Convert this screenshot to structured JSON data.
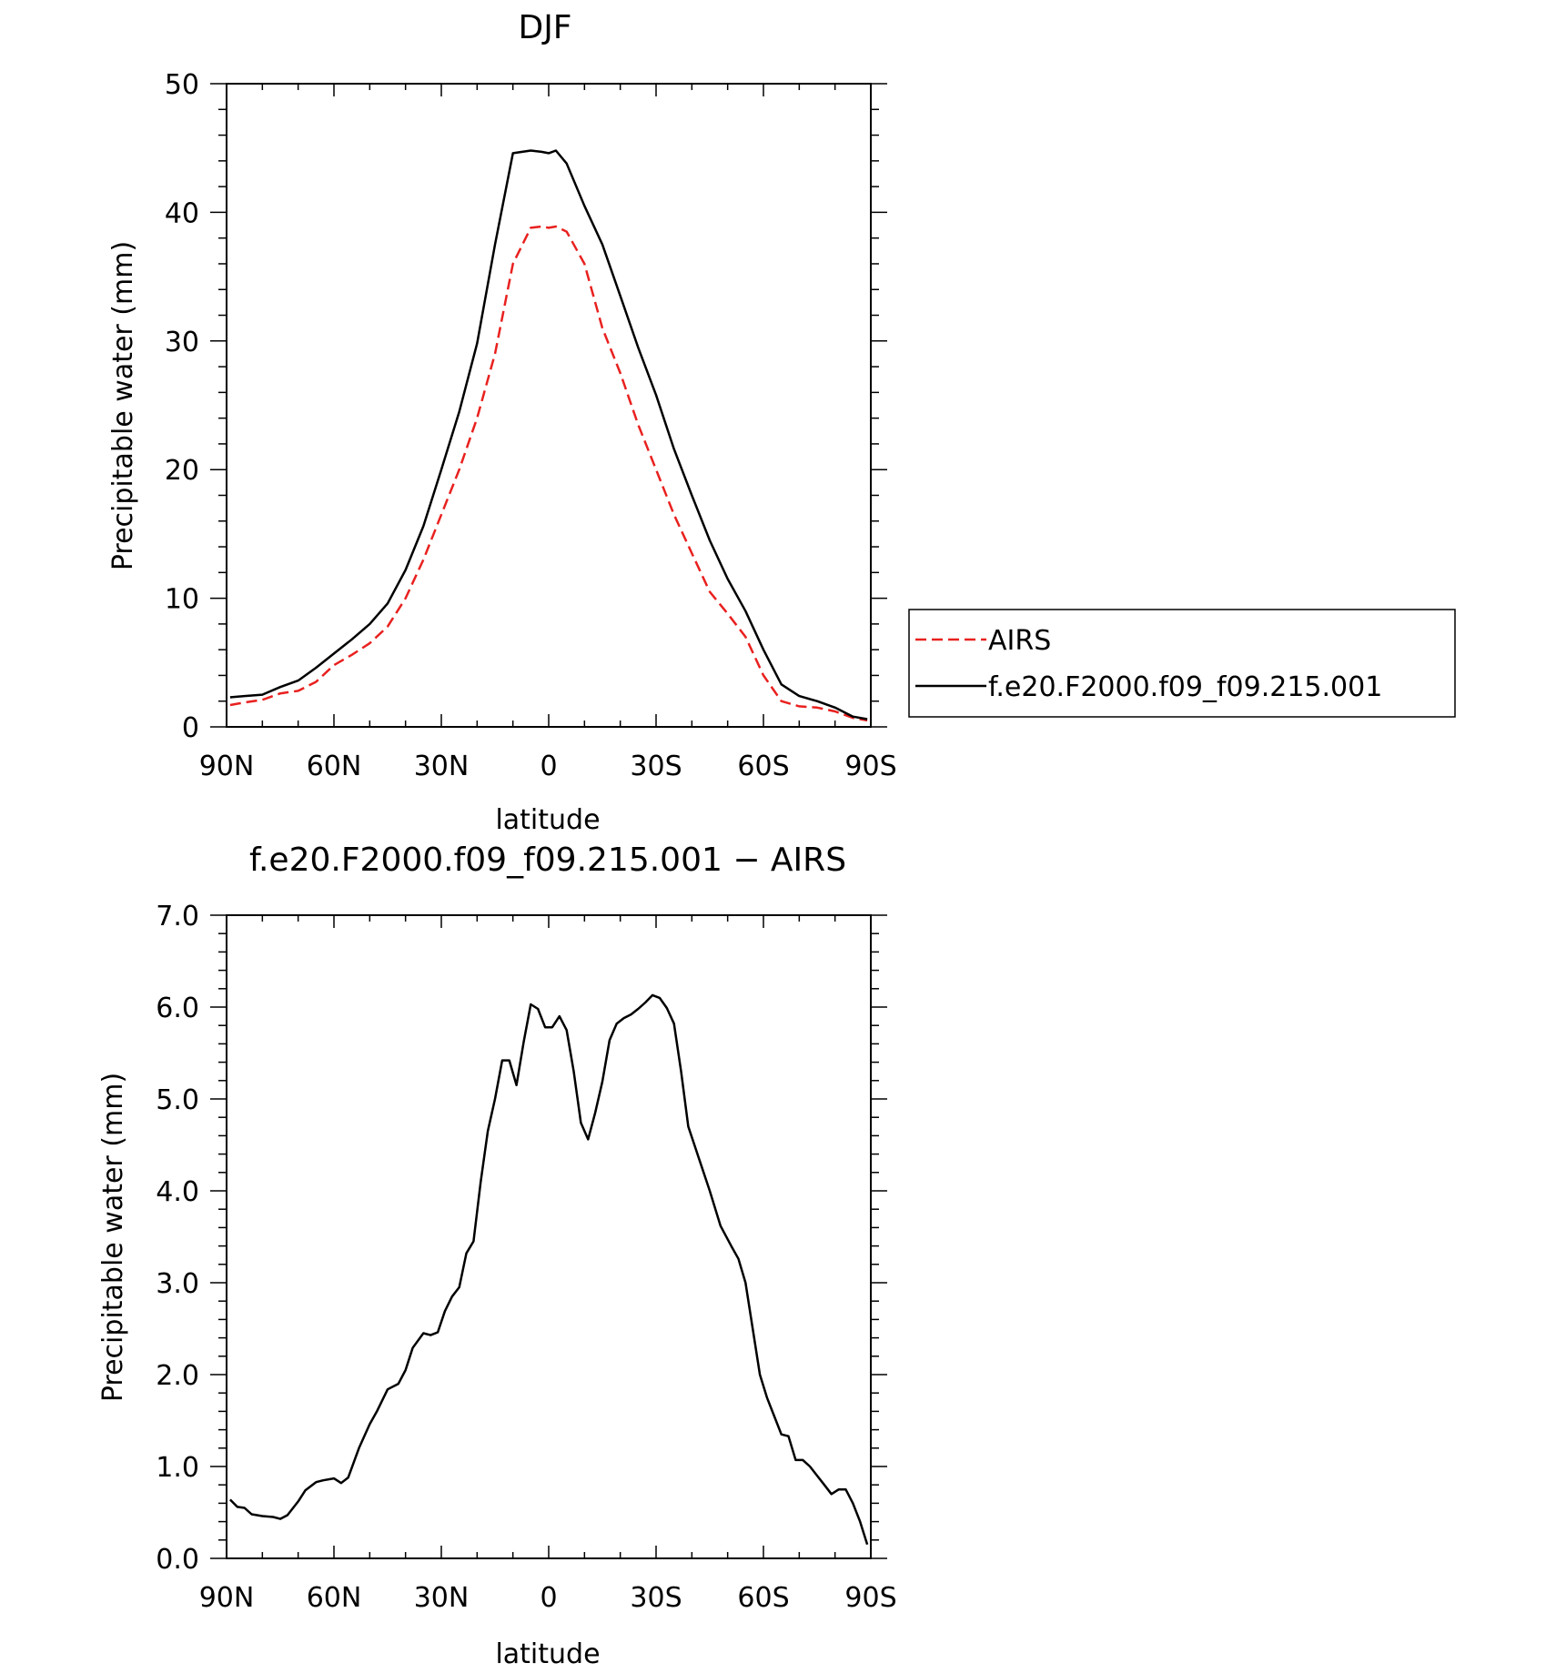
{
  "chart_data": [
    {
      "type": "line",
      "title": "DJF",
      "xlabel": "latitude",
      "ylabel": "Precipitable water (mm)",
      "x_tick_labels": [
        "90N",
        "60N",
        "30N",
        "0",
        "30S",
        "60S",
        "90S"
      ],
      "y_tick_labels": [
        "0",
        "10",
        "20",
        "30",
        "40",
        "50"
      ],
      "xlim": [
        90,
        -90
      ],
      "ylim": [
        0,
        50
      ],
      "legend_position": "right",
      "series": [
        {
          "name": "AIRS",
          "color": "#e8211f",
          "dash": "dashed",
          "x": [
            89,
            85,
            80,
            75,
            70,
            65,
            60,
            55,
            50,
            45,
            40,
            35,
            30,
            25,
            20,
            15,
            10,
            5,
            2,
            0,
            -2,
            -5,
            -10,
            -15,
            -20,
            -25,
            -30,
            -35,
            -40,
            -45,
            -50,
            -55,
            -60,
            -65,
            -70,
            -75,
            -80,
            -85,
            -89
          ],
          "y": [
            1.7,
            1.9,
            2.1,
            2.6,
            2.8,
            3.5,
            4.8,
            5.6,
            6.5,
            7.8,
            10.0,
            13.0,
            16.5,
            20.0,
            24.0,
            29.0,
            36.0,
            38.8,
            38.9,
            38.8,
            38.9,
            38.5,
            36.0,
            31.0,
            27.5,
            23.5,
            20.0,
            16.5,
            13.5,
            10.5,
            8.8,
            7.0,
            4.0,
            2.0,
            1.6,
            1.5,
            1.2,
            0.7,
            0.5
          ]
        },
        {
          "name": "f.e20.F2000.f09_f09.215.001",
          "color": "#000000",
          "dash": "solid",
          "x": [
            89,
            85,
            80,
            75,
            70,
            65,
            60,
            55,
            50,
            45,
            40,
            35,
            30,
            25,
            20,
            15,
            10,
            5,
            2,
            0,
            -2,
            -5,
            -10,
            -15,
            -20,
            -25,
            -30,
            -35,
            -40,
            -45,
            -50,
            -55,
            -60,
            -65,
            -70,
            -75,
            -80,
            -85,
            -89
          ],
          "y": [
            2.3,
            2.4,
            2.5,
            3.1,
            3.6,
            4.6,
            5.7,
            6.8,
            8.0,
            9.6,
            12.2,
            15.6,
            20.0,
            24.5,
            29.8,
            37.5,
            44.6,
            44.8,
            44.7,
            44.6,
            44.8,
            43.8,
            40.5,
            37.5,
            33.5,
            29.5,
            25.8,
            21.6,
            18.0,
            14.5,
            11.5,
            9.0,
            6.0,
            3.3,
            2.4,
            2.0,
            1.5,
            0.8,
            0.6
          ]
        }
      ]
    },
    {
      "type": "line",
      "title": "f.e20.F2000.f09_f09.215.001 − AIRS",
      "xlabel": "latitude",
      "ylabel": "Precipitable water (mm)",
      "x_tick_labels": [
        "90N",
        "60N",
        "30N",
        "0",
        "30S",
        "60S",
        "90S"
      ],
      "y_tick_labels": [
        "0.0",
        "1.0",
        "2.0",
        "3.0",
        "4.0",
        "5.0",
        "6.0",
        "7.0"
      ],
      "xlim": [
        90,
        -90
      ],
      "ylim": [
        0,
        7
      ],
      "series": [
        {
          "color": "#000000",
          "dash": "solid",
          "x": [
            89,
            87,
            85,
            83,
            80,
            77,
            75,
            73,
            70,
            68,
            65,
            63,
            60,
            58,
            56,
            53,
            50,
            48,
            45,
            42,
            40,
            38,
            35,
            33,
            31,
            29,
            27,
            25,
            23,
            21,
            19,
            17,
            15,
            13,
            11,
            9,
            7,
            5,
            3,
            1,
            -1,
            -3,
            -5,
            -7,
            -9,
            -11,
            -13,
            -15,
            -17,
            -19,
            -21,
            -23,
            -25,
            -27,
            -29,
            -31,
            -33,
            -35,
            -37,
            -39,
            -42,
            -45,
            -48,
            -51,
            -53,
            -55,
            -57,
            -59,
            -61,
            -63,
            -65,
            -67,
            -69,
            -71,
            -73,
            -75,
            -77,
            -79,
            -81,
            -83,
            -85,
            -87,
            -89
          ],
          "y": [
            0.64,
            0.56,
            0.55,
            0.48,
            0.46,
            0.45,
            0.43,
            0.47,
            0.62,
            0.74,
            0.83,
            0.85,
            0.87,
            0.82,
            0.88,
            1.2,
            1.46,
            1.6,
            1.84,
            1.9,
            2.05,
            2.29,
            2.45,
            2.43,
            2.46,
            2.69,
            2.85,
            2.95,
            3.32,
            3.45,
            4.1,
            4.65,
            5.0,
            5.42,
            5.42,
            5.15,
            5.62,
            6.03,
            5.98,
            5.78,
            5.78,
            5.9,
            5.75,
            5.3,
            4.74,
            4.56,
            4.85,
            5.19,
            5.64,
            5.82,
            5.88,
            5.92,
            5.98,
            6.05,
            6.13,
            6.1,
            5.99,
            5.82,
            5.3,
            4.7,
            4.35,
            4.0,
            3.62,
            3.4,
            3.26,
            3.0,
            2.5,
            2.0,
            1.75,
            1.55,
            1.35,
            1.33,
            1.07,
            1.07,
            1.0,
            0.9,
            0.8,
            0.7,
            0.75,
            0.75,
            0.6,
            0.4,
            0.15
          ]
        }
      ]
    }
  ]
}
